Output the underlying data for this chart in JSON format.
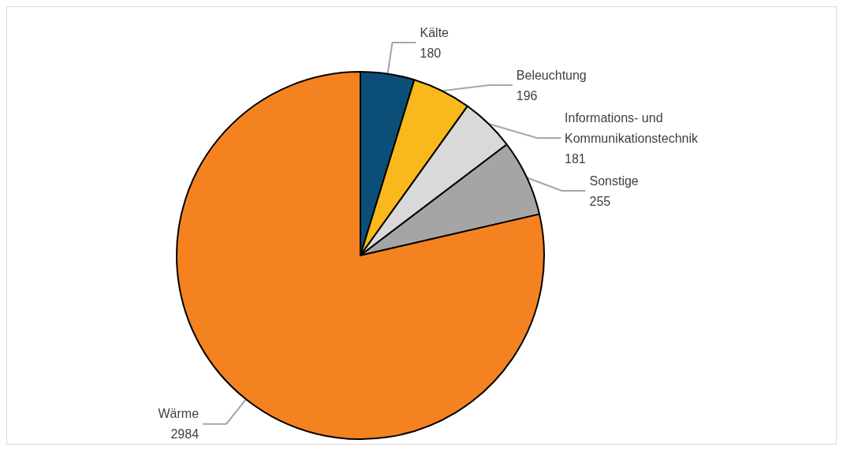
{
  "chart_data": {
    "type": "pie",
    "categories": [
      "Kälte",
      "Beleuchtung",
      "Informations- und Kommunikationstechnik",
      "Sonstige",
      "Wärme"
    ],
    "values": [
      180,
      196,
      181,
      255,
      2984
    ],
    "colors": [
      "#0b4f79",
      "#f9b81b",
      "#d9d9d9",
      "#a5a5a5",
      "#f58220"
    ],
    "data_labels": true,
    "legend": false
  }
}
